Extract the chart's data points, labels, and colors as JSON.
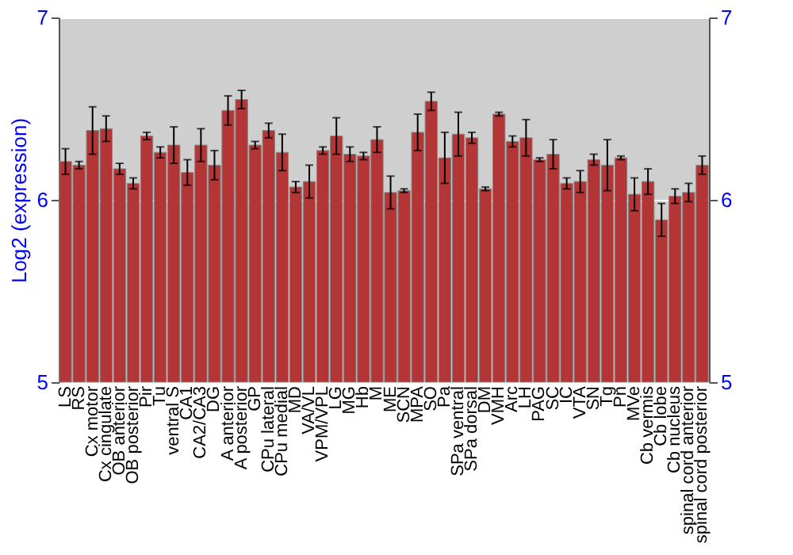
{
  "chart_data": {
    "type": "bar",
    "ylabel": "Log2 (expression)",
    "categories": [
      "LS",
      "RS",
      "Cx motor",
      "Cx cingulate",
      "OB anterior",
      "OB posterior",
      "Pir",
      "Tu",
      "ventral S",
      "CA1",
      "CA2/CA3",
      "DG",
      "A anterior",
      "A posterior",
      "GP",
      "CPu lateral",
      "CPu medial",
      "MD",
      "VA/VL",
      "VPM/VPL",
      "LG",
      "MG",
      "Hb",
      "M",
      "ME",
      "SCN",
      "MPA",
      "SO",
      "Pa",
      "SPa ventral",
      "SPa dorsal",
      "DM",
      "VMH",
      "Arc",
      "LH",
      "PAG",
      "SC",
      "IC",
      "VTA",
      "SN",
      "Tg",
      "Pn",
      "MVe",
      "Cb vermis",
      "Cb lobe",
      "Cb nucleus",
      "spinal cord anterior",
      "spinal cord posterior"
    ],
    "values": [
      6.21,
      6.19,
      6.38,
      6.39,
      6.17,
      6.09,
      6.35,
      6.26,
      6.3,
      6.15,
      6.3,
      6.19,
      6.49,
      6.55,
      6.3,
      6.38,
      6.26,
      6.07,
      6.1,
      6.27,
      6.35,
      6.25,
      6.24,
      6.33,
      6.04,
      6.05,
      6.37,
      6.54,
      6.23,
      6.36,
      6.34,
      6.06,
      6.47,
      6.32,
      6.34,
      6.22,
      6.25,
      6.09,
      6.1,
      6.22,
      6.19,
      6.23,
      6.03,
      6.1,
      5.89,
      6.02,
      6.04,
      6.19
    ],
    "errors": [
      0.07,
      0.02,
      0.13,
      0.07,
      0.03,
      0.03,
      0.02,
      0.03,
      0.1,
      0.07,
      0.09,
      0.08,
      0.08,
      0.05,
      0.02,
      0.04,
      0.1,
      0.03,
      0.09,
      0.02,
      0.1,
      0.04,
      0.02,
      0.07,
      0.09,
      0.01,
      0.1,
      0.05,
      0.14,
      0.12,
      0.03,
      0.01,
      0.01,
      0.03,
      0.1,
      0.01,
      0.08,
      0.03,
      0.06,
      0.03,
      0.14,
      0.01,
      0.09,
      0.07,
      0.09,
      0.04,
      0.05,
      0.05
    ],
    "color": "#b33535",
    "ylim": [
      5,
      7
    ],
    "yticks": [
      5,
      6,
      7
    ],
    "y2lim": [
      5,
      7
    ],
    "y2ticks": [
      5,
      6,
      7
    ],
    "grid": "y"
  }
}
